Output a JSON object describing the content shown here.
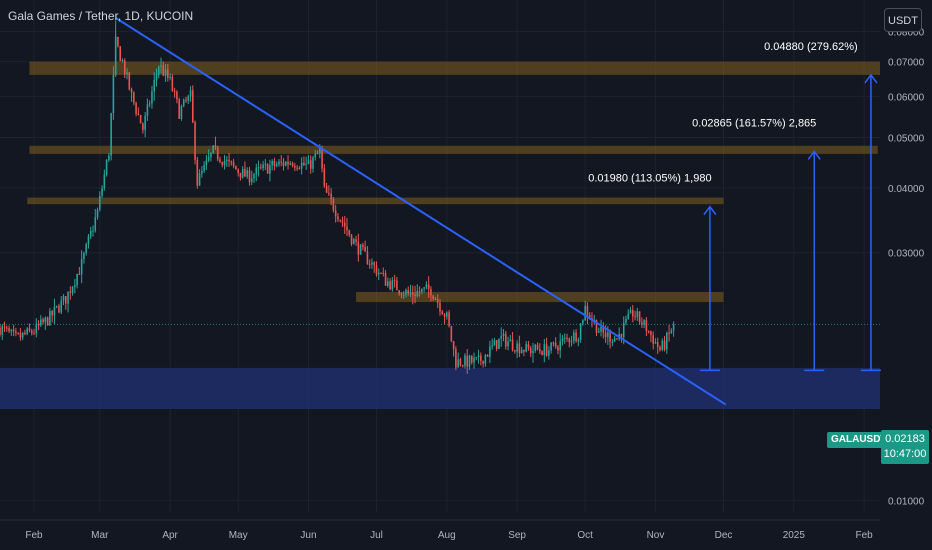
{
  "header": {
    "title": "Gala Games / Tether, 1D, KUCOIN",
    "currency": "USDT"
  },
  "last_price": {
    "symbol": "GALAUSDT",
    "price": "0.02183",
    "countdown": "10:47:00"
  },
  "colors": {
    "background": "#131722",
    "up": "#26a69a",
    "down": "#ef5350",
    "zone": "#7a5a1e",
    "support_zone": "#1e2e6b",
    "trendline": "#2962ff",
    "target": "#2962ff"
  },
  "chart_data": {
    "type": "candlestick",
    "title": "Gala Games / Tether, 1D, KUCOIN",
    "y_scale": "log",
    "ylim": [
      0.0095,
      0.092
    ],
    "y_ticks": [
      "0.08000",
      "0.07000",
      "0.06000",
      "0.05000",
      "0.04000",
      "0.03000",
      "0.01000"
    ],
    "x_ticks": [
      "Feb",
      "Mar",
      "Apr",
      "May",
      "Jun",
      "Jul",
      "Aug",
      "Sep",
      "Oct",
      "Nov",
      "Dec",
      "2025",
      "Feb"
    ],
    "x_tick_dates": [
      "2024-02-01",
      "2024-03-01",
      "2024-04-01",
      "2024-05-01",
      "2024-06-01",
      "2024-07-01",
      "2024-08-01",
      "2024-09-01",
      "2024-10-01",
      "2024-11-01",
      "2024-12-01",
      "2025-01-01",
      "2025-02-01"
    ],
    "xlim": [
      "2024-01-17",
      "2025-02-08"
    ],
    "anchors": [
      [
        "2024-01-17",
        0.0215
      ],
      [
        "2024-01-24",
        0.0205
      ],
      [
        "2024-02-01",
        0.0212
      ],
      [
        "2024-02-08",
        0.0225
      ],
      [
        "2024-02-15",
        0.0245
      ],
      [
        "2024-02-22",
        0.0285
      ],
      [
        "2024-02-29",
        0.036
      ],
      [
        "2024-03-05",
        0.047
      ],
      [
        "2024-03-08",
        0.076
      ],
      [
        "2024-03-11",
        0.07
      ],
      [
        "2024-03-15",
        0.06
      ],
      [
        "2024-03-20",
        0.052
      ],
      [
        "2024-03-27",
        0.069
      ],
      [
        "2024-04-01",
        0.064
      ],
      [
        "2024-04-05",
        0.056
      ],
      [
        "2024-04-10",
        0.06
      ],
      [
        "2024-04-13",
        0.041
      ],
      [
        "2024-04-20",
        0.047
      ],
      [
        "2024-04-28",
        0.044
      ],
      [
        "2024-05-05",
        0.042
      ],
      [
        "2024-05-15",
        0.044
      ],
      [
        "2024-05-25",
        0.045
      ],
      [
        "2024-06-01",
        0.044
      ],
      [
        "2024-06-06",
        0.047
      ],
      [
        "2024-06-08",
        0.0395
      ],
      [
        "2024-06-15",
        0.035
      ],
      [
        "2024-06-22",
        0.031
      ],
      [
        "2024-06-29",
        0.0285
      ],
      [
        "2024-07-05",
        0.0265
      ],
      [
        "2024-07-15",
        0.025
      ],
      [
        "2024-07-25",
        0.0255
      ],
      [
        "2024-08-01",
        0.0225
      ],
      [
        "2024-08-05",
        0.0185
      ],
      [
        "2024-08-15",
        0.0185
      ],
      [
        "2024-08-25",
        0.0205
      ],
      [
        "2024-09-05",
        0.0195
      ],
      [
        "2024-09-15",
        0.0195
      ],
      [
        "2024-09-28",
        0.021
      ],
      [
        "2024-10-01",
        0.0235
      ],
      [
        "2024-10-08",
        0.021
      ],
      [
        "2024-10-15",
        0.0205
      ],
      [
        "2024-10-22",
        0.023
      ],
      [
        "2024-10-28",
        0.0215
      ],
      [
        "2024-11-03",
        0.0195
      ],
      [
        "2024-11-05",
        0.02
      ],
      [
        "2024-11-09",
        0.0218
      ]
    ],
    "last_price": 0.02183,
    "zones": [
      {
        "from_date": "2024-01-30",
        "to_date": "2025-02-08",
        "low": 0.066,
        "high": 0.07
      },
      {
        "from_date": "2024-01-30",
        "to_date": "2025-02-07",
        "low": 0.0465,
        "high": 0.0482
      },
      {
        "from_date": "2024-01-29",
        "to_date": "2024-12-01",
        "low": 0.0372,
        "high": 0.0383
      },
      {
        "from_date": "2024-06-22",
        "to_date": "2024-12-01",
        "low": 0.0241,
        "high": 0.0252
      },
      {
        "from_date": "2024-01-17",
        "to_date": "2025-02-08",
        "low": 0.015,
        "high": 0.018,
        "kind": "support"
      }
    ],
    "trendline": {
      "from": [
        "2024-03-08",
        0.085
      ],
      "to": [
        "2024-12-02",
        0.0153
      ]
    },
    "targets": [
      {
        "date": "2024-11-25",
        "base": 0.0178,
        "top": 0.0368,
        "label": "0.01980 (113.05%) 1,980"
      },
      {
        "date": "2025-01-10",
        "base": 0.0178,
        "top": 0.047,
        "label": "0.02865 (161.57%) 2,865"
      },
      {
        "date": "2025-02-04",
        "base": 0.0178,
        "top": 0.066,
        "label": "0.04880 (279.62%)"
      }
    ]
  }
}
